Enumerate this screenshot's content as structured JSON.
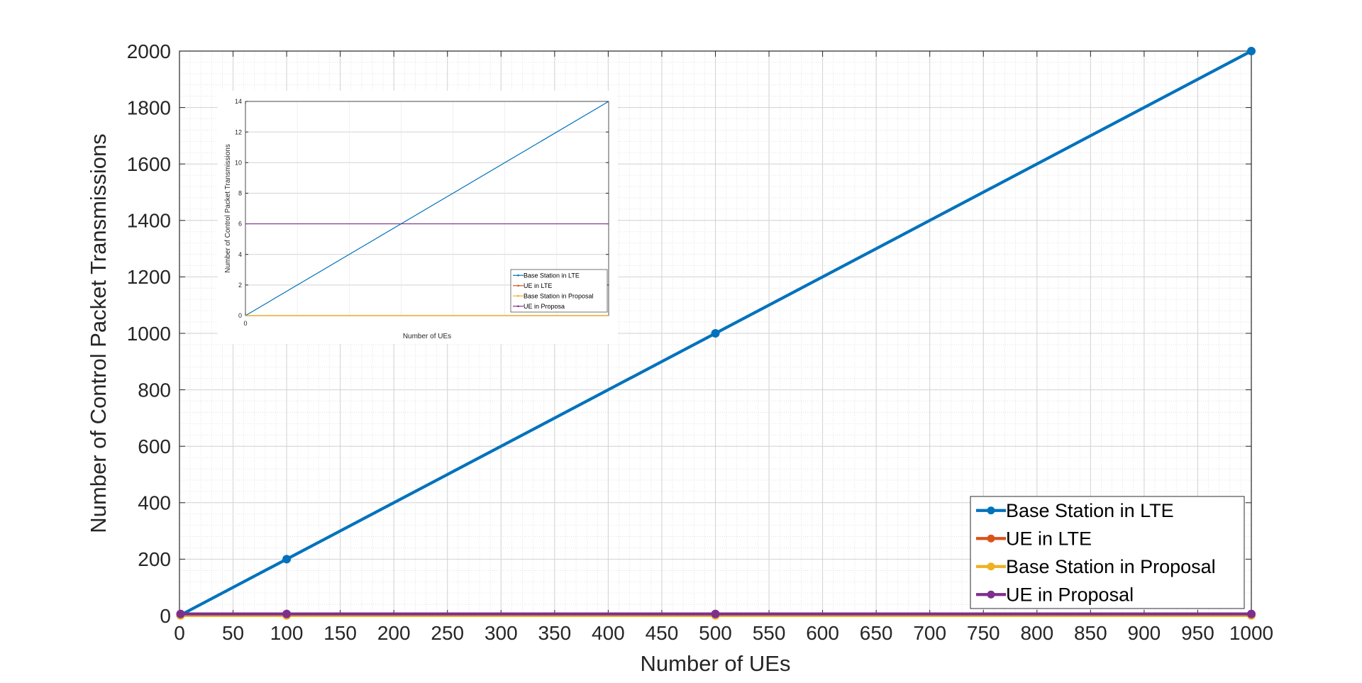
{
  "chart_data": [
    {
      "type": "line",
      "xlabel": "Number of UEs",
      "ylabel": "Number of Control Packet Transmissions",
      "xlim": [
        0,
        1000
      ],
      "ylim": [
        0,
        2000
      ],
      "xticks": [
        0,
        50,
        100,
        150,
        200,
        250,
        300,
        350,
        400,
        450,
        500,
        550,
        600,
        650,
        700,
        750,
        800,
        850,
        900,
        950,
        1000
      ],
      "yticks": [
        0,
        200,
        400,
        600,
        800,
        1000,
        1200,
        1400,
        1600,
        1800,
        2000
      ],
      "grid": true,
      "minor_grid": true,
      "legend_position": "bottom-right",
      "series": [
        {
          "name": "Base Station in LTE",
          "color": "#0072BD",
          "x": [
            1,
            100,
            500,
            1000
          ],
          "y": [
            2,
            200,
            1000,
            2000
          ]
        },
        {
          "name": "UE in LTE",
          "color": "#D95319",
          "x": [
            1,
            100,
            500,
            1000
          ],
          "y": [
            1,
            1,
            1,
            1
          ]
        },
        {
          "name": "Base Station in Proposal",
          "color": "#EDB120",
          "x": [
            1,
            100,
            500,
            1000
          ],
          "y": [
            1,
            1,
            1,
            1
          ]
        },
        {
          "name": "UE in Proposal",
          "color": "#7E2F8E",
          "x": [
            1,
            100,
            500,
            1000
          ],
          "y": [
            6,
            6,
            6,
            6
          ]
        }
      ]
    },
    {
      "type": "line",
      "xlabel": "Number of UEs",
      "ylabel": "Number of Control Packet Transmissions",
      "xlim": [
        0,
        7
      ],
      "ylim": [
        0,
        14
      ],
      "xticks": [
        0
      ],
      "yticks": [
        0,
        2,
        4,
        6,
        8,
        10,
        12,
        14
      ],
      "grid": true,
      "legend_position": "bottom-right",
      "series": [
        {
          "name": "Base Station  in LTE",
          "color": "#0072BD",
          "x": [
            0,
            7
          ],
          "y": [
            0,
            14
          ]
        },
        {
          "name": "UE in LTE",
          "color": "#D95319",
          "x": [
            0,
            7
          ],
          "y": [
            0,
            0
          ]
        },
        {
          "name": "Base Station in Proposal",
          "color": "#EDB120",
          "x": [
            0,
            7
          ],
          "y": [
            0,
            0
          ]
        },
        {
          "name": "UE in Proposa",
          "color": "#7E2F8E",
          "x": [
            0,
            7
          ],
          "y": [
            6,
            6
          ]
        }
      ]
    }
  ]
}
